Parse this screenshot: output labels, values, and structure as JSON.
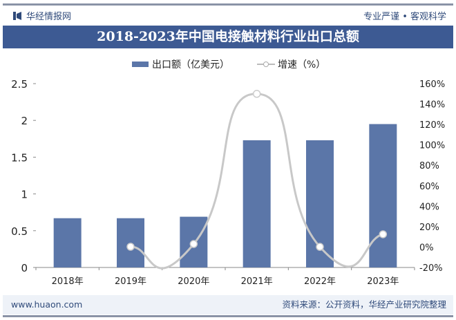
{
  "header": {
    "brand": "华经情报网",
    "slogan": "专业严谨 • 客观科学",
    "title": "2018-2023年中国电接触材料行业出口总额"
  },
  "footer": {
    "website": "www.huaon.com",
    "source": "资料来源：公开资料，华经产业研究院整理"
  },
  "colors": {
    "bar": "#5b76a8",
    "line": "#c8c8c8",
    "title_bg": "#3d5a93"
  },
  "chart_data": {
    "type": "bar+line",
    "categories": [
      "2018年",
      "2019年",
      "2020年",
      "2021年",
      "2022年",
      "2023年"
    ],
    "series": [
      {
        "name": "出口额（亿美元）",
        "type": "bar",
        "axis": "left",
        "values": [
          0.67,
          0.67,
          0.69,
          1.73,
          1.73,
          1.95
        ]
      },
      {
        "name": "增速（%）",
        "type": "line",
        "axis": "right",
        "values": [
          null,
          0.3,
          3,
          150,
          0.2,
          12.5
        ]
      }
    ],
    "left_axis": {
      "ylim": [
        0,
        2.5
      ],
      "ticks": [
        "0",
        "0.5",
        "1",
        "1.5",
        "2",
        "2.5"
      ]
    },
    "right_axis": {
      "ylim": [
        -20,
        160
      ],
      "ticks": [
        "-20%",
        "0%",
        "20%",
        "40%",
        "60%",
        "80%",
        "100%",
        "120%",
        "140%",
        "160%"
      ]
    },
    "legend_placement": "top-center",
    "grid": false
  }
}
